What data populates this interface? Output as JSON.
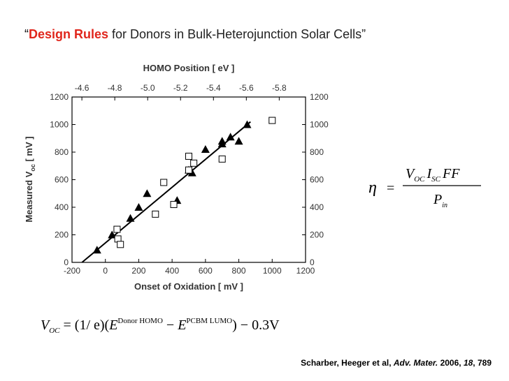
{
  "title": {
    "open": "“",
    "highlight": "Design Rules",
    "rest": " for Donors in Bulk-Heterojunction Solar Cells”"
  },
  "efficiency_equation": {
    "lhs": "η",
    "equals": "=",
    "numerator": [
      "V",
      "OC",
      "I",
      "SC",
      "FF"
    ],
    "denominator": [
      "P",
      "in"
    ]
  },
  "voc_equation": [
    "V",
    "OC",
    " = (1/ e)(",
    "E",
    "Donor HOMO",
    " − ",
    "E",
    "PCBM LUMO",
    ") − 0.3V"
  ],
  "citation": {
    "authors": "Scharber, Heeger et al, ",
    "journal": "Adv. Mater.",
    "year": " 2006, ",
    "volume": "18",
    "pages": ", 789"
  },
  "chart_data": {
    "type": "scatter",
    "x_label": "Onset of Oxidation [ mV ]",
    "y_label": [
      "Measured V",
      "oc",
      " [ mV ]"
    ],
    "x2_label": "HOMO Position [ eV ]",
    "xlim": [
      -200,
      1200
    ],
    "xticks": [
      -200,
      0,
      200,
      400,
      600,
      800,
      1000,
      1200
    ],
    "ylim": [
      0,
      1200
    ],
    "yticks": [
      0,
      200,
      400,
      600,
      800,
      1000,
      1200
    ],
    "y2lim": [
      0,
      1200
    ],
    "y2ticks": [
      0,
      200,
      400,
      600,
      800,
      1000,
      1200
    ],
    "x2lim": [
      -4.54,
      -5.96
    ],
    "x2ticks": [
      -4.6,
      -4.8,
      {
        "value": -5.0,
        "label": "-5.0"
      },
      -5.2,
      -5.4,
      -5.6,
      -5.8
    ],
    "series": [
      {
        "marker": "triangle",
        "color": "#000000",
        "x": [
          -50,
          40,
          150,
          200,
          250,
          430,
          500,
          520,
          600,
          700,
          700,
          750,
          800,
          850
        ],
        "values": [
          90,
          200,
          320,
          400,
          500,
          450,
          670,
          650,
          820,
          860,
          880,
          910,
          880,
          1000
        ]
      },
      {
        "marker": "square",
        "color": "#000000",
        "x": [
          70,
          75,
          90,
          300,
          350,
          410,
          500,
          500,
          530,
          700,
          1000
        ],
        "values": [
          240,
          170,
          130,
          350,
          580,
          420,
          770,
          670,
          720,
          750,
          1030
        ]
      }
    ],
    "fit_line": {
      "x": [
        -140,
        870
      ],
      "values": [
        0,
        1020
      ],
      "color": "#000000"
    }
  }
}
